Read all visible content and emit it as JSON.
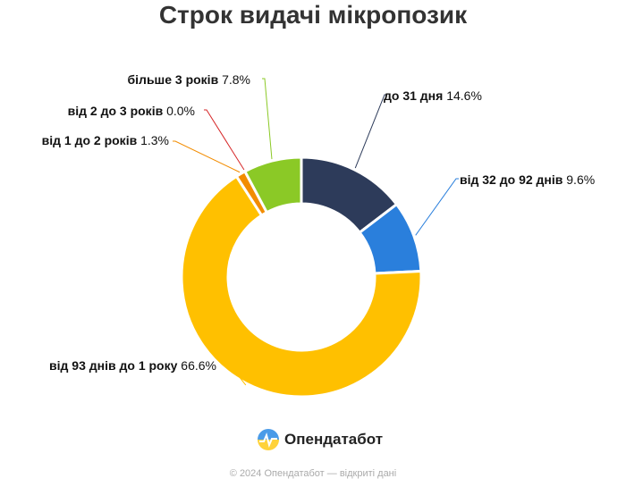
{
  "chart_data": {
    "type": "donut",
    "title": "Строк видачі мікропозик",
    "slices": [
      {
        "label": "до 31 дня",
        "value": 14.6,
        "display": "14.6%",
        "color": "#2d3b5a"
      },
      {
        "label": "від 32 до 92 днів",
        "value": 9.6,
        "display": "9.6%",
        "color": "#2a7fdc"
      },
      {
        "label": "від 93 днів до 1 року",
        "value": 66.6,
        "display": "66.6%",
        "color": "#ffc000"
      },
      {
        "label": "від 1 до 2 років",
        "value": 1.3,
        "display": "1.3%",
        "color": "#f28c00"
      },
      {
        "label": "від 2 до 3 років",
        "value": 0.0,
        "display": "0.0%",
        "color": "#d62728"
      },
      {
        "label": "більше 3 років",
        "value": 7.8,
        "display": "7.8%",
        "color": "#8bc926"
      }
    ]
  },
  "brand": {
    "name": "Опендатабот"
  },
  "footer": {
    "text": "© 2024 Опендатабот — відкриті дані"
  }
}
